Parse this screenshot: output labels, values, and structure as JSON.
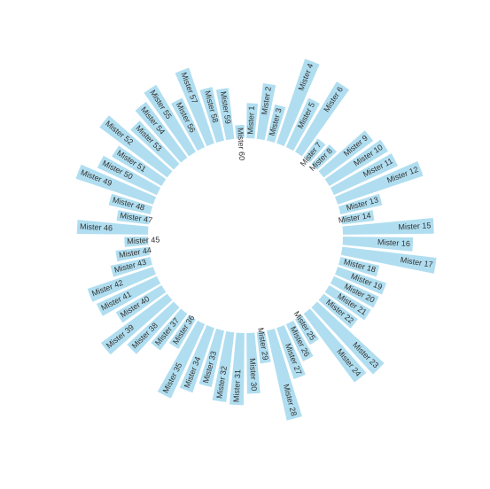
{
  "chart_data": {
    "type": "bar",
    "layout": "circular",
    "categories": [
      "Mister 1",
      "Mister 2",
      "Mister 3",
      "Mister 4",
      "Mister 5",
      "Mister 6",
      "Mister 7",
      "Mister 8",
      "Mister 9",
      "Mister 10",
      "Mister 11",
      "Mister 12",
      "Mister 13",
      "Mister 14",
      "Mister 15",
      "Mister 16",
      "Mister 17",
      "Mister 18",
      "Mister 19",
      "Mister 20",
      "Mister 21",
      "Mister 22",
      "Mister 23",
      "Mister 24",
      "Mister 25",
      "Mister 26",
      "Mister 27",
      "Mister 28",
      "Mister 29",
      "Mister 30",
      "Mister 31",
      "Mister 32",
      "Mister 33",
      "Mister 34",
      "Mister 35",
      "Mister 36",
      "Mister 37",
      "Mister 38",
      "Mister 39",
      "Mister 40",
      "Mister 41",
      "Mister 42",
      "Mister 43",
      "Mister 44",
      "Mister 45",
      "Mister 46",
      "Mister 47",
      "Mister 48",
      "Mister 49",
      "Mister 50",
      "Mister 51",
      "Mister 52",
      "Mister 53",
      "Mister 54",
      "Mister 55",
      "Mister 56",
      "Mister 57",
      "Mister 58",
      "Mister 59",
      "Mister 60"
    ],
    "values": [
      37,
      59,
      39,
      94,
      57,
      86,
      25,
      28,
      65,
      72,
      74,
      95,
      45,
      34,
      96,
      74,
      100,
      42,
      54,
      52,
      51,
      45,
      96,
      90,
      31,
      43,
      57,
      97,
      33,
      64,
      76,
      74,
      61,
      72,
      86,
      36,
      48,
      67,
      87,
      56,
      70,
      73,
      43,
      35,
      25,
      75,
      34,
      45,
      86,
      69,
      61,
      89,
      62,
      73,
      82,
      57,
      84,
      58,
      54,
      14
    ],
    "title": "",
    "xlabel": "",
    "ylabel": "",
    "ylim": [
      0,
      100
    ],
    "bar_color": "#b0def0",
    "label_color": "#333333"
  }
}
